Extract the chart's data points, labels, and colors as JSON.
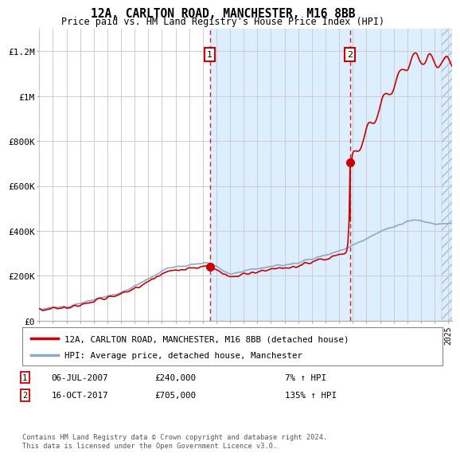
{
  "title": "12A, CARLTON ROAD, MANCHESTER, M16 8BB",
  "subtitle": "Price paid vs. HM Land Registry's House Price Index (HPI)",
  "property_label": "12A, CARLTON ROAD, MANCHESTER, M16 8BB (detached house)",
  "hpi_label": "HPI: Average price, detached house, Manchester",
  "footnote": "Contains HM Land Registry data © Crown copyright and database right 2024.\nThis data is licensed under the Open Government Licence v3.0.",
  "sale1": {
    "date_str": "06-JUL-2007",
    "price": 240000,
    "pct": "7%",
    "direction": "↑"
  },
  "sale2": {
    "date_str": "16-OCT-2017",
    "price": 705000,
    "pct": "135%",
    "direction": "↑"
  },
  "sale1_x": 2007.51,
  "sale2_x": 2017.79,
  "ylim": [
    0,
    1300000
  ],
  "yticks": [
    0,
    200000,
    400000,
    600000,
    800000,
    1000000,
    1200000
  ],
  "ytick_labels": [
    "£0",
    "£200K",
    "£400K",
    "£600K",
    "£800K",
    "£1M",
    "£1.2M"
  ],
  "xlim_start": 1995,
  "xlim_end": 2025.3,
  "line_color_property": "#cc0000",
  "line_color_hpi": "#88aacc",
  "marker_color": "#cc0000",
  "shade_color": "#ddeeff",
  "marker1_y": 240000,
  "marker2_y": 705000,
  "box_color": "#cc0000",
  "background_color": "#ffffff",
  "grid_color": "#cccccc",
  "hatch_start": 2024.5
}
